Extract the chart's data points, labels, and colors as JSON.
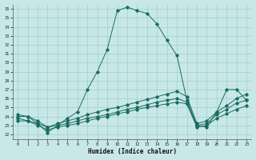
{
  "xlabel": "Humidex (Indice chaleur)",
  "ylabel": "",
  "background_color": "#c8e8e8",
  "grid_color": "#a0cccc",
  "line_color": "#1a6b60",
  "xlim": [
    -0.5,
    23.5
  ],
  "ylim": [
    21.5,
    36.5
  ],
  "yticks": [
    22,
    23,
    24,
    25,
    26,
    27,
    28,
    29,
    30,
    31,
    32,
    33,
    34,
    35,
    36
  ],
  "xticks": [
    0,
    1,
    2,
    3,
    4,
    5,
    6,
    7,
    8,
    9,
    10,
    11,
    12,
    13,
    14,
    15,
    16,
    17,
    18,
    19,
    20,
    21,
    22,
    23
  ],
  "curve1_x": [
    0,
    1,
    2,
    3,
    4,
    5,
    6,
    7,
    8,
    9,
    10,
    11,
    12,
    13,
    14,
    15,
    16,
    17,
    18,
    19,
    20,
    21,
    22,
    23
  ],
  "curve1_y": [
    24.0,
    24.0,
    23.2,
    22.2,
    23.0,
    23.8,
    24.5,
    27.0,
    29.0,
    31.5,
    35.8,
    36.2,
    35.8,
    35.5,
    34.3,
    32.5,
    30.8,
    25.8,
    23.0,
    22.8,
    24.5,
    27.0,
    27.0,
    25.8
  ],
  "curve2_x": [
    0,
    1,
    2,
    3,
    4,
    5,
    6,
    7,
    8,
    9,
    10,
    11,
    12,
    13,
    14,
    15,
    16,
    17,
    18,
    19,
    20,
    21,
    22,
    23
  ],
  "curve2_y": [
    23.5,
    23.5,
    23.0,
    22.5,
    22.8,
    23.0,
    23.2,
    23.5,
    23.8,
    24.0,
    24.3,
    24.5,
    24.8,
    25.0,
    25.2,
    25.4,
    25.6,
    25.4,
    22.8,
    23.0,
    23.8,
    24.3,
    24.8,
    25.2
  ],
  "curve3_x": [
    0,
    1,
    2,
    3,
    4,
    5,
    6,
    7,
    8,
    9,
    10,
    11,
    12,
    13,
    14,
    15,
    16,
    17,
    18,
    19,
    20,
    21,
    22,
    23
  ],
  "curve3_y": [
    23.8,
    23.5,
    23.2,
    22.8,
    23.0,
    23.2,
    23.5,
    23.8,
    24.0,
    24.2,
    24.5,
    24.8,
    25.0,
    25.3,
    25.6,
    25.8,
    26.0,
    25.6,
    23.0,
    23.2,
    24.2,
    24.8,
    25.5,
    25.8
  ],
  "curve4_x": [
    0,
    1,
    2,
    3,
    4,
    5,
    6,
    7,
    8,
    9,
    10,
    11,
    12,
    13,
    14,
    15,
    16,
    17,
    18,
    19,
    20,
    21,
    22,
    23
  ],
  "curve4_y": [
    24.2,
    24.0,
    23.5,
    22.8,
    23.2,
    23.5,
    23.8,
    24.2,
    24.5,
    24.8,
    25.0,
    25.3,
    25.6,
    25.9,
    26.2,
    26.5,
    26.8,
    26.2,
    23.2,
    23.5,
    24.5,
    25.2,
    26.0,
    26.5
  ]
}
